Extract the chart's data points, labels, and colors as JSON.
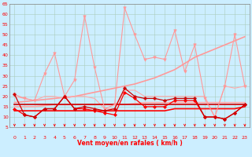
{
  "x": [
    0,
    1,
    2,
    3,
    4,
    5,
    6,
    7,
    8,
    9,
    10,
    11,
    12,
    13,
    14,
    15,
    16,
    17,
    18,
    19,
    20,
    21,
    22,
    23
  ],
  "series": [
    {
      "name": "rafales_max",
      "y": [
        21,
        19,
        18,
        31,
        41,
        20,
        28,
        59,
        34,
        14,
        16,
        63,
        50,
        38,
        39,
        38,
        52,
        32,
        45,
        19,
        10,
        25,
        50,
        25
      ],
      "color": "#ff9999",
      "lw": 0.8,
      "marker": "v",
      "ms": 2.5
    },
    {
      "name": "rafales_trend",
      "y": [
        17,
        17.5,
        18,
        18.5,
        19,
        19.5,
        20,
        21,
        22,
        23,
        24,
        25,
        26,
        27.5,
        29,
        31,
        33,
        36,
        39,
        41,
        43,
        45,
        47,
        49
      ],
      "color": "#ff9999",
      "lw": 1.2,
      "marker": null,
      "ms": 0
    },
    {
      "name": "vent_max",
      "y": [
        20,
        19,
        18,
        20,
        20,
        19,
        20,
        20,
        19,
        14,
        14,
        23,
        23,
        20,
        20,
        20,
        20,
        20,
        20,
        20,
        10,
        25,
        24,
        25
      ],
      "color": "#ffaaaa",
      "lw": 0.8,
      "marker": null,
      "ms": 0
    },
    {
      "name": "vent_mean_trend",
      "y": [
        15,
        15,
        15,
        15.5,
        16,
        16,
        16,
        16,
        16,
        16,
        16,
        16,
        16.5,
        17,
        17,
        17,
        17,
        17,
        17,
        17,
        17,
        17,
        17,
        17
      ],
      "color": "#ffaaaa",
      "lw": 1.2,
      "marker": null,
      "ms": 0
    },
    {
      "name": "vent_moyen",
      "y": [
        14,
        11,
        10,
        14,
        14,
        20,
        14,
        14,
        13,
        12,
        11,
        22,
        19,
        15,
        15,
        15,
        18,
        18,
        18,
        10,
        10,
        9,
        12,
        16
      ],
      "color": "#ff0000",
      "lw": 0.9,
      "marker": "D",
      "ms": 2.0
    },
    {
      "name": "vent_moyen_trend",
      "y": [
        13,
        13,
        13,
        13,
        13,
        13,
        13,
        13,
        13,
        13,
        13,
        13,
        13,
        13,
        13,
        13,
        14,
        14,
        14,
        14,
        14,
        14,
        14,
        15
      ],
      "color": "#ff0000",
      "lw": 1.2,
      "marker": null,
      "ms": 0
    },
    {
      "name": "rafales_moyen",
      "y": [
        21,
        11,
        10,
        14,
        14,
        20,
        14,
        15,
        14,
        13,
        14,
        24,
        20,
        19,
        19,
        18,
        19,
        19,
        19,
        10,
        10,
        9,
        12,
        16
      ],
      "color": "#cc0000",
      "lw": 0.9,
      "marker": "P",
      "ms": 2.5
    },
    {
      "name": "rafales_moyen_trend",
      "y": [
        16,
        16,
        16,
        16,
        16,
        16,
        16,
        16,
        16,
        16,
        16,
        16,
        16,
        16,
        16,
        16,
        16,
        16,
        16,
        16,
        16,
        16,
        16,
        16
      ],
      "color": "#cc0000",
      "lw": 1.2,
      "marker": null,
      "ms": 0
    }
  ],
  "xlabel": "Vent moyen/en rafales ( km/h )",
  "xlim": [
    -0.5,
    23.5
  ],
  "ylim": [
    5,
    65
  ],
  "yticks": [
    5,
    10,
    15,
    20,
    25,
    30,
    35,
    40,
    45,
    50,
    55,
    60,
    65
  ],
  "xticks": [
    0,
    1,
    2,
    3,
    4,
    5,
    6,
    7,
    8,
    9,
    10,
    11,
    12,
    13,
    14,
    15,
    16,
    17,
    18,
    19,
    20,
    21,
    22,
    23
  ],
  "bg_color": "#cceeff",
  "grid_color": "#aaccbb",
  "tick_color": "#ff0000",
  "label_color": "#ff0000",
  "spine_color": "#888888"
}
